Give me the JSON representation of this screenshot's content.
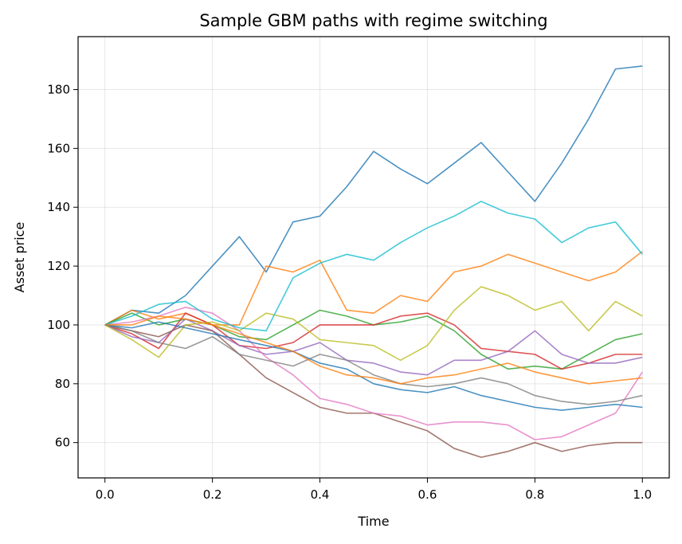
{
  "chart_data": {
    "type": "line",
    "title": "Sample GBM paths with regime switching",
    "xlabel": "Time",
    "ylabel": "Asset price",
    "xlim": [
      -0.05,
      1.05
    ],
    "ylim": [
      48,
      198
    ],
    "xticks": [
      0.0,
      0.2,
      0.4,
      0.6,
      0.8,
      1.0
    ],
    "xtick_labels": [
      "0.0",
      "0.2",
      "0.4",
      "0.6",
      "0.8",
      "1.0"
    ],
    "yticks": [
      60,
      80,
      100,
      120,
      140,
      160,
      180
    ],
    "ytick_labels": [
      "60",
      "80",
      "100",
      "120",
      "140",
      "160",
      "180"
    ],
    "grid": true,
    "legend": "none",
    "x": [
      0.0,
      0.05,
      0.1,
      0.15,
      0.2,
      0.25,
      0.3,
      0.35,
      0.4,
      0.45,
      0.5,
      0.55,
      0.6,
      0.65,
      0.7,
      0.75,
      0.8,
      0.85,
      0.9,
      0.95,
      1.0
    ],
    "series": [
      {
        "color": "#1f77b4",
        "values": [
          100,
          105,
          104,
          110,
          120,
          130,
          118,
          135,
          137,
          147,
          159,
          153,
          148,
          155,
          162,
          152,
          142,
          155,
          170,
          187,
          188
        ]
      },
      {
        "color": "#ff7f0e",
        "values": [
          100,
          105,
          102,
          104,
          100,
          100,
          120,
          118,
          122,
          105,
          104,
          110,
          108,
          118,
          120,
          124,
          121,
          118,
          115,
          118,
          125
        ]
      },
      {
        "color": "#2ca02c",
        "values": [
          100,
          104,
          100,
          102,
          100,
          96,
          95,
          100,
          105,
          103,
          100,
          101,
          103,
          98,
          90,
          85,
          86,
          85,
          90,
          95,
          97
        ]
      },
      {
        "color": "#d62728",
        "values": [
          100,
          97,
          92,
          104,
          100,
          93,
          92,
          94,
          100,
          100,
          100,
          103,
          104,
          100,
          92,
          91,
          90,
          85,
          87,
          90,
          90
        ]
      },
      {
        "color": "#9467bd",
        "values": [
          100,
          96,
          94,
          102,
          98,
          93,
          90,
          91,
          94,
          88,
          87,
          84,
          83,
          88,
          88,
          91,
          98,
          90,
          87,
          87,
          89
        ]
      },
      {
        "color": "#8c564b",
        "values": [
          100,
          98,
          96,
          100,
          98,
          90,
          82,
          77,
          72,
          70,
          70,
          67,
          64,
          58,
          55,
          57,
          60,
          57,
          59,
          60,
          60
        ]
      },
      {
        "color": "#e377c2",
        "values": [
          100,
          101,
          103,
          106,
          104,
          98,
          89,
          83,
          75,
          73,
          70,
          69,
          66,
          67,
          67,
          66,
          61,
          62,
          66,
          70,
          84
        ]
      },
      {
        "color": "#7f7f7f",
        "values": [
          100,
          98,
          94,
          92,
          96,
          90,
          88,
          86,
          90,
          88,
          83,
          80,
          79,
          80,
          82,
          80,
          76,
          74,
          73,
          74,
          76
        ]
      },
      {
        "color": "#bcbd22",
        "values": [
          100,
          95,
          89,
          100,
          101,
          98,
          104,
          102,
          95,
          94,
          93,
          88,
          93,
          105,
          113,
          110,
          105,
          108,
          98,
          108,
          103
        ]
      },
      {
        "color": "#17becf",
        "values": [
          100,
          103,
          107,
          108,
          102,
          99,
          98,
          116,
          121,
          124,
          122,
          128,
          133,
          137,
          142,
          138,
          136,
          128,
          133,
          135,
          124
        ]
      },
      {
        "color": "#1f77b4",
        "values": [
          100,
          99,
          101,
          99,
          97,
          95,
          93,
          91,
          87,
          85,
          80,
          78,
          77,
          79,
          76,
          74,
          72,
          71,
          72,
          73,
          72
        ]
      },
      {
        "color": "#ff7f0e",
        "values": [
          100,
          100,
          103,
          102,
          100,
          97,
          94,
          91,
          86,
          83,
          82,
          80,
          82,
          83,
          85,
          87,
          84,
          82,
          80,
          81,
          82
        ]
      }
    ]
  }
}
